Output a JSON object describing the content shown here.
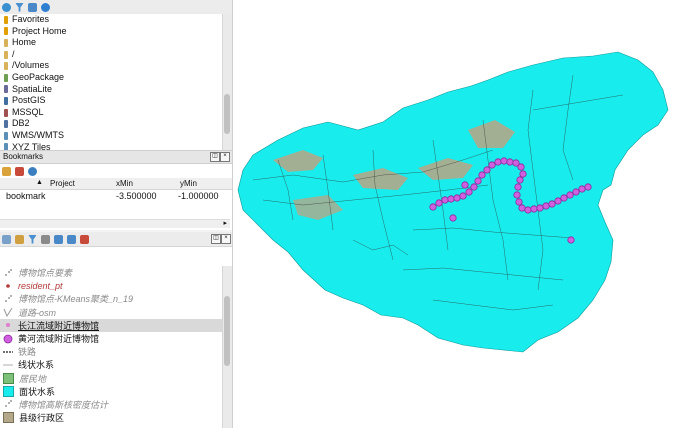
{
  "browser": {
    "items": [
      {
        "label": "Favorites",
        "icon": "star-icon",
        "color": "#e0a000"
      },
      {
        "label": "Project Home",
        "icon": "project-home-icon",
        "color": "#e0a000"
      },
      {
        "label": "Home",
        "icon": "folder-icon",
        "color": "#d8b25a"
      },
      {
        "label": "/",
        "icon": "folder-icon",
        "color": "#d8b25a"
      },
      {
        "label": "/Volumes",
        "icon": "folder-icon",
        "color": "#d8b25a"
      },
      {
        "label": "GeoPackage",
        "icon": "geopackage-icon",
        "color": "#6fa052"
      },
      {
        "label": "SpatiaLite",
        "icon": "spatialite-icon",
        "color": "#6a6a9a"
      },
      {
        "label": "PostGIS",
        "icon": "postgis-icon",
        "color": "#3f6f9f"
      },
      {
        "label": "MSSQL",
        "icon": "mssql-icon",
        "color": "#a05050"
      },
      {
        "label": "DB2",
        "icon": "db2-icon",
        "color": "#5070a0"
      },
      {
        "label": "WMS/WMTS",
        "icon": "wms-icon",
        "color": "#5a8fb8"
      },
      {
        "label": "XYZ Tiles",
        "icon": "xyz-tiles-icon",
        "color": "#5a8fb8"
      }
    ]
  },
  "bookmarks": {
    "title": "Bookmarks",
    "columns": {
      "project": "Project",
      "xmin": "xMin",
      "ymin": "yMin"
    },
    "row": {
      "name": "bookmark",
      "xmin": "-3.500000",
      "ymin": "-1.000000"
    }
  },
  "layers": {
    "items": [
      {
        "label": "博物馆点要素",
        "style": "italic-gray",
        "symbol": "point-pattern-icon"
      },
      {
        "label": "resident_pt",
        "style": "italic",
        "symbol": "red-dot-icon"
      },
      {
        "label": "博物馆点-KMeans聚类_n_19",
        "style": "italic-gray",
        "symbol": "point-pattern-icon"
      },
      {
        "label": "道路-osm",
        "style": "italic-gray",
        "symbol": "line-pattern-icon"
      },
      {
        "label": "长江流域附近博物馆",
        "style": "selected",
        "symbol": "pink-dot-icon"
      },
      {
        "label": "黄河流域附近博物馆",
        "style": "normal",
        "symbol": "magenta-circle-icon"
      },
      {
        "label": "铁路",
        "style": "gray",
        "symbol": "rail-line-icon"
      },
      {
        "label": "线状水系",
        "style": "normal",
        "symbol": "thin-line-icon"
      },
      {
        "label": "居民地",
        "style": "gray",
        "symbol": "green-square-icon"
      },
      {
        "label": "面状水系",
        "style": "normal",
        "symbol": "cyan-square-icon"
      },
      {
        "label": "博物馆高斯核密度估计",
        "style": "gray",
        "symbol": "point-pattern-icon"
      },
      {
        "label": "县级行政区",
        "style": "normal",
        "symbol": "tan-square-icon"
      }
    ]
  },
  "colors": {
    "water": "#19ecec",
    "land": "#b3a98a",
    "museum": "#d060e0",
    "museum_stroke": "#8a2a9a"
  }
}
